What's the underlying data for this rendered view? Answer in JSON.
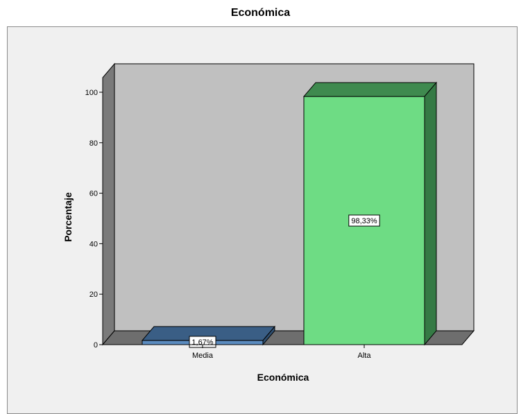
{
  "chart_data": {
    "type": "bar",
    "title": "Económica",
    "xlabel": "Económica",
    "ylabel": "Porcentaje",
    "categories": [
      "Media",
      "Alta"
    ],
    "values": [
      1.67,
      98.33
    ],
    "data_labels": [
      "1,67%",
      "98,33%"
    ],
    "ylim": [
      0,
      100
    ],
    "yticks": [
      0,
      20,
      40,
      60,
      80,
      100
    ],
    "ytick_labels": [
      "0",
      "20",
      "40",
      "60",
      "80",
      "100"
    ],
    "grid": false,
    "legend": "none",
    "style": "3d",
    "colors": {
      "bars": [
        "#5b8cc0",
        "#6edc84"
      ],
      "bar_tops": [
        "#3a5e85",
        "#3f8a4f"
      ],
      "bar_sides": [
        "#2f4f70",
        "#357a45"
      ],
      "plot_wall": "#c0c0c0",
      "floor": "#6e6e6e",
      "side_wall": "#7a7a7a",
      "panel": "#f0f0f0"
    }
  }
}
